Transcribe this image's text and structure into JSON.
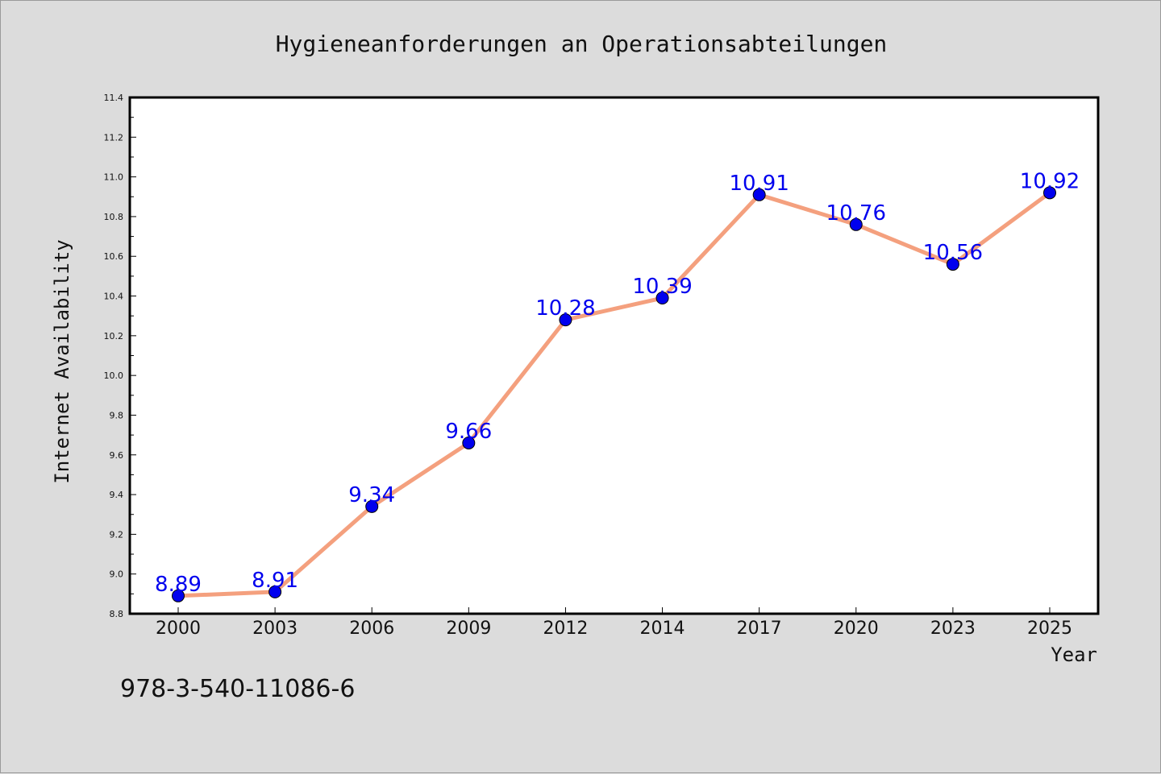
{
  "chart_data": {
    "type": "line",
    "title": "Hygieneanforderungen an Operationsabteilungen",
    "xlabel": "Year",
    "ylabel": "Internet Availability",
    "categories": [
      "2000",
      "2003",
      "2006",
      "2009",
      "2012",
      "2014",
      "2017",
      "2020",
      "2023",
      "2025"
    ],
    "series": [
      {
        "values": [
          8.89,
          8.91,
          9.34,
          9.66,
          10.28,
          10.39,
          10.91,
          10.76,
          10.56,
          10.92
        ],
        "value_labels": [
          "8.89",
          "8.91",
          "9.34",
          "9.66",
          "10.28",
          "10.39",
          "10.91",
          "10.76",
          "10.56",
          "10.92"
        ],
        "line_color": "#f4a07e",
        "marker_color": "#0000ee",
        "label_color": "#0000ee"
      }
    ],
    "ylim": [
      8.8,
      11.4
    ],
    "yticks": [
      "8.8",
      "9.0",
      "9.2",
      "9.4",
      "9.6",
      "9.8",
      "10.0",
      "10.2",
      "10.4",
      "10.6",
      "10.8",
      "11.0",
      "11.2",
      "11.4"
    ],
    "grid": false,
    "legend": "none"
  },
  "footnote": "978-3-540-11086-6",
  "colors": {
    "background": "#dcdcdc",
    "plot_background": "#ffffff",
    "axis": "#000000"
  }
}
